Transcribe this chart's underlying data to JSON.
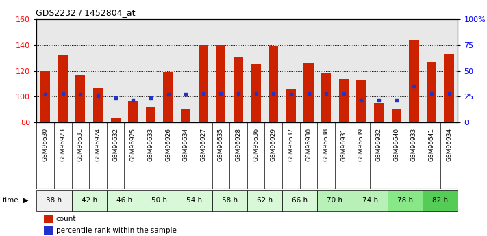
{
  "title": "GDS2232 / 1452804_at",
  "samples": [
    "GSM96630",
    "GSM96923",
    "GSM96631",
    "GSM96924",
    "GSM96632",
    "GSM96925",
    "GSM96633",
    "GSM96926",
    "GSM96634",
    "GSM96927",
    "GSM96635",
    "GSM96928",
    "GSM96636",
    "GSM96929",
    "GSM96637",
    "GSM96930",
    "GSM96638",
    "GSM96931",
    "GSM96639",
    "GSM96932",
    "GSM96640",
    "GSM96933",
    "GSM96641",
    "GSM96934"
  ],
  "counts": [
    120,
    132,
    117,
    107,
    84,
    97,
    92,
    119,
    91,
    140,
    140,
    131,
    125,
    139,
    106,
    126,
    118,
    114,
    113,
    95,
    90,
    144,
    127,
    133
  ],
  "percentile": [
    27,
    28,
    27,
    26,
    24,
    22,
    24,
    27,
    27,
    28,
    28,
    28,
    28,
    28,
    27,
    28,
    28,
    28,
    22,
    22,
    22,
    35,
    28,
    28
  ],
  "time_groups": [
    {
      "label": "38 h",
      "start": 0,
      "end": 2,
      "color": "#f0f0f0"
    },
    {
      "label": "42 h",
      "start": 2,
      "end": 4,
      "color": "#d8f8d8"
    },
    {
      "label": "46 h",
      "start": 4,
      "end": 6,
      "color": "#d8f8d8"
    },
    {
      "label": "50 h",
      "start": 6,
      "end": 8,
      "color": "#d8f8d8"
    },
    {
      "label": "54 h",
      "start": 8,
      "end": 10,
      "color": "#d8f8d8"
    },
    {
      "label": "58 h",
      "start": 10,
      "end": 12,
      "color": "#d8f8d8"
    },
    {
      "label": "62 h",
      "start": 12,
      "end": 14,
      "color": "#d8f8d8"
    },
    {
      "label": "66 h",
      "start": 14,
      "end": 16,
      "color": "#d8f8d8"
    },
    {
      "label": "70 h",
      "start": 16,
      "end": 18,
      "color": "#b8f0b8"
    },
    {
      "label": "74 h",
      "start": 18,
      "end": 20,
      "color": "#b8f0b8"
    },
    {
      "label": "78 h",
      "start": 20,
      "end": 22,
      "color": "#88e888"
    },
    {
      "label": "82 h",
      "start": 22,
      "end": 24,
      "color": "#55cc55"
    }
  ],
  "ylim_left": [
    80,
    160
  ],
  "ylim_right": [
    0,
    100
  ],
  "yticks_left": [
    80,
    100,
    120,
    140,
    160
  ],
  "yticks_right": [
    0,
    25,
    50,
    75,
    100
  ],
  "bar_color": "#cc2200",
  "dot_color": "#2233cc",
  "bar_width": 0.55,
  "plot_bg": "#e8e8e8",
  "label_bg": "#d0d0d0"
}
